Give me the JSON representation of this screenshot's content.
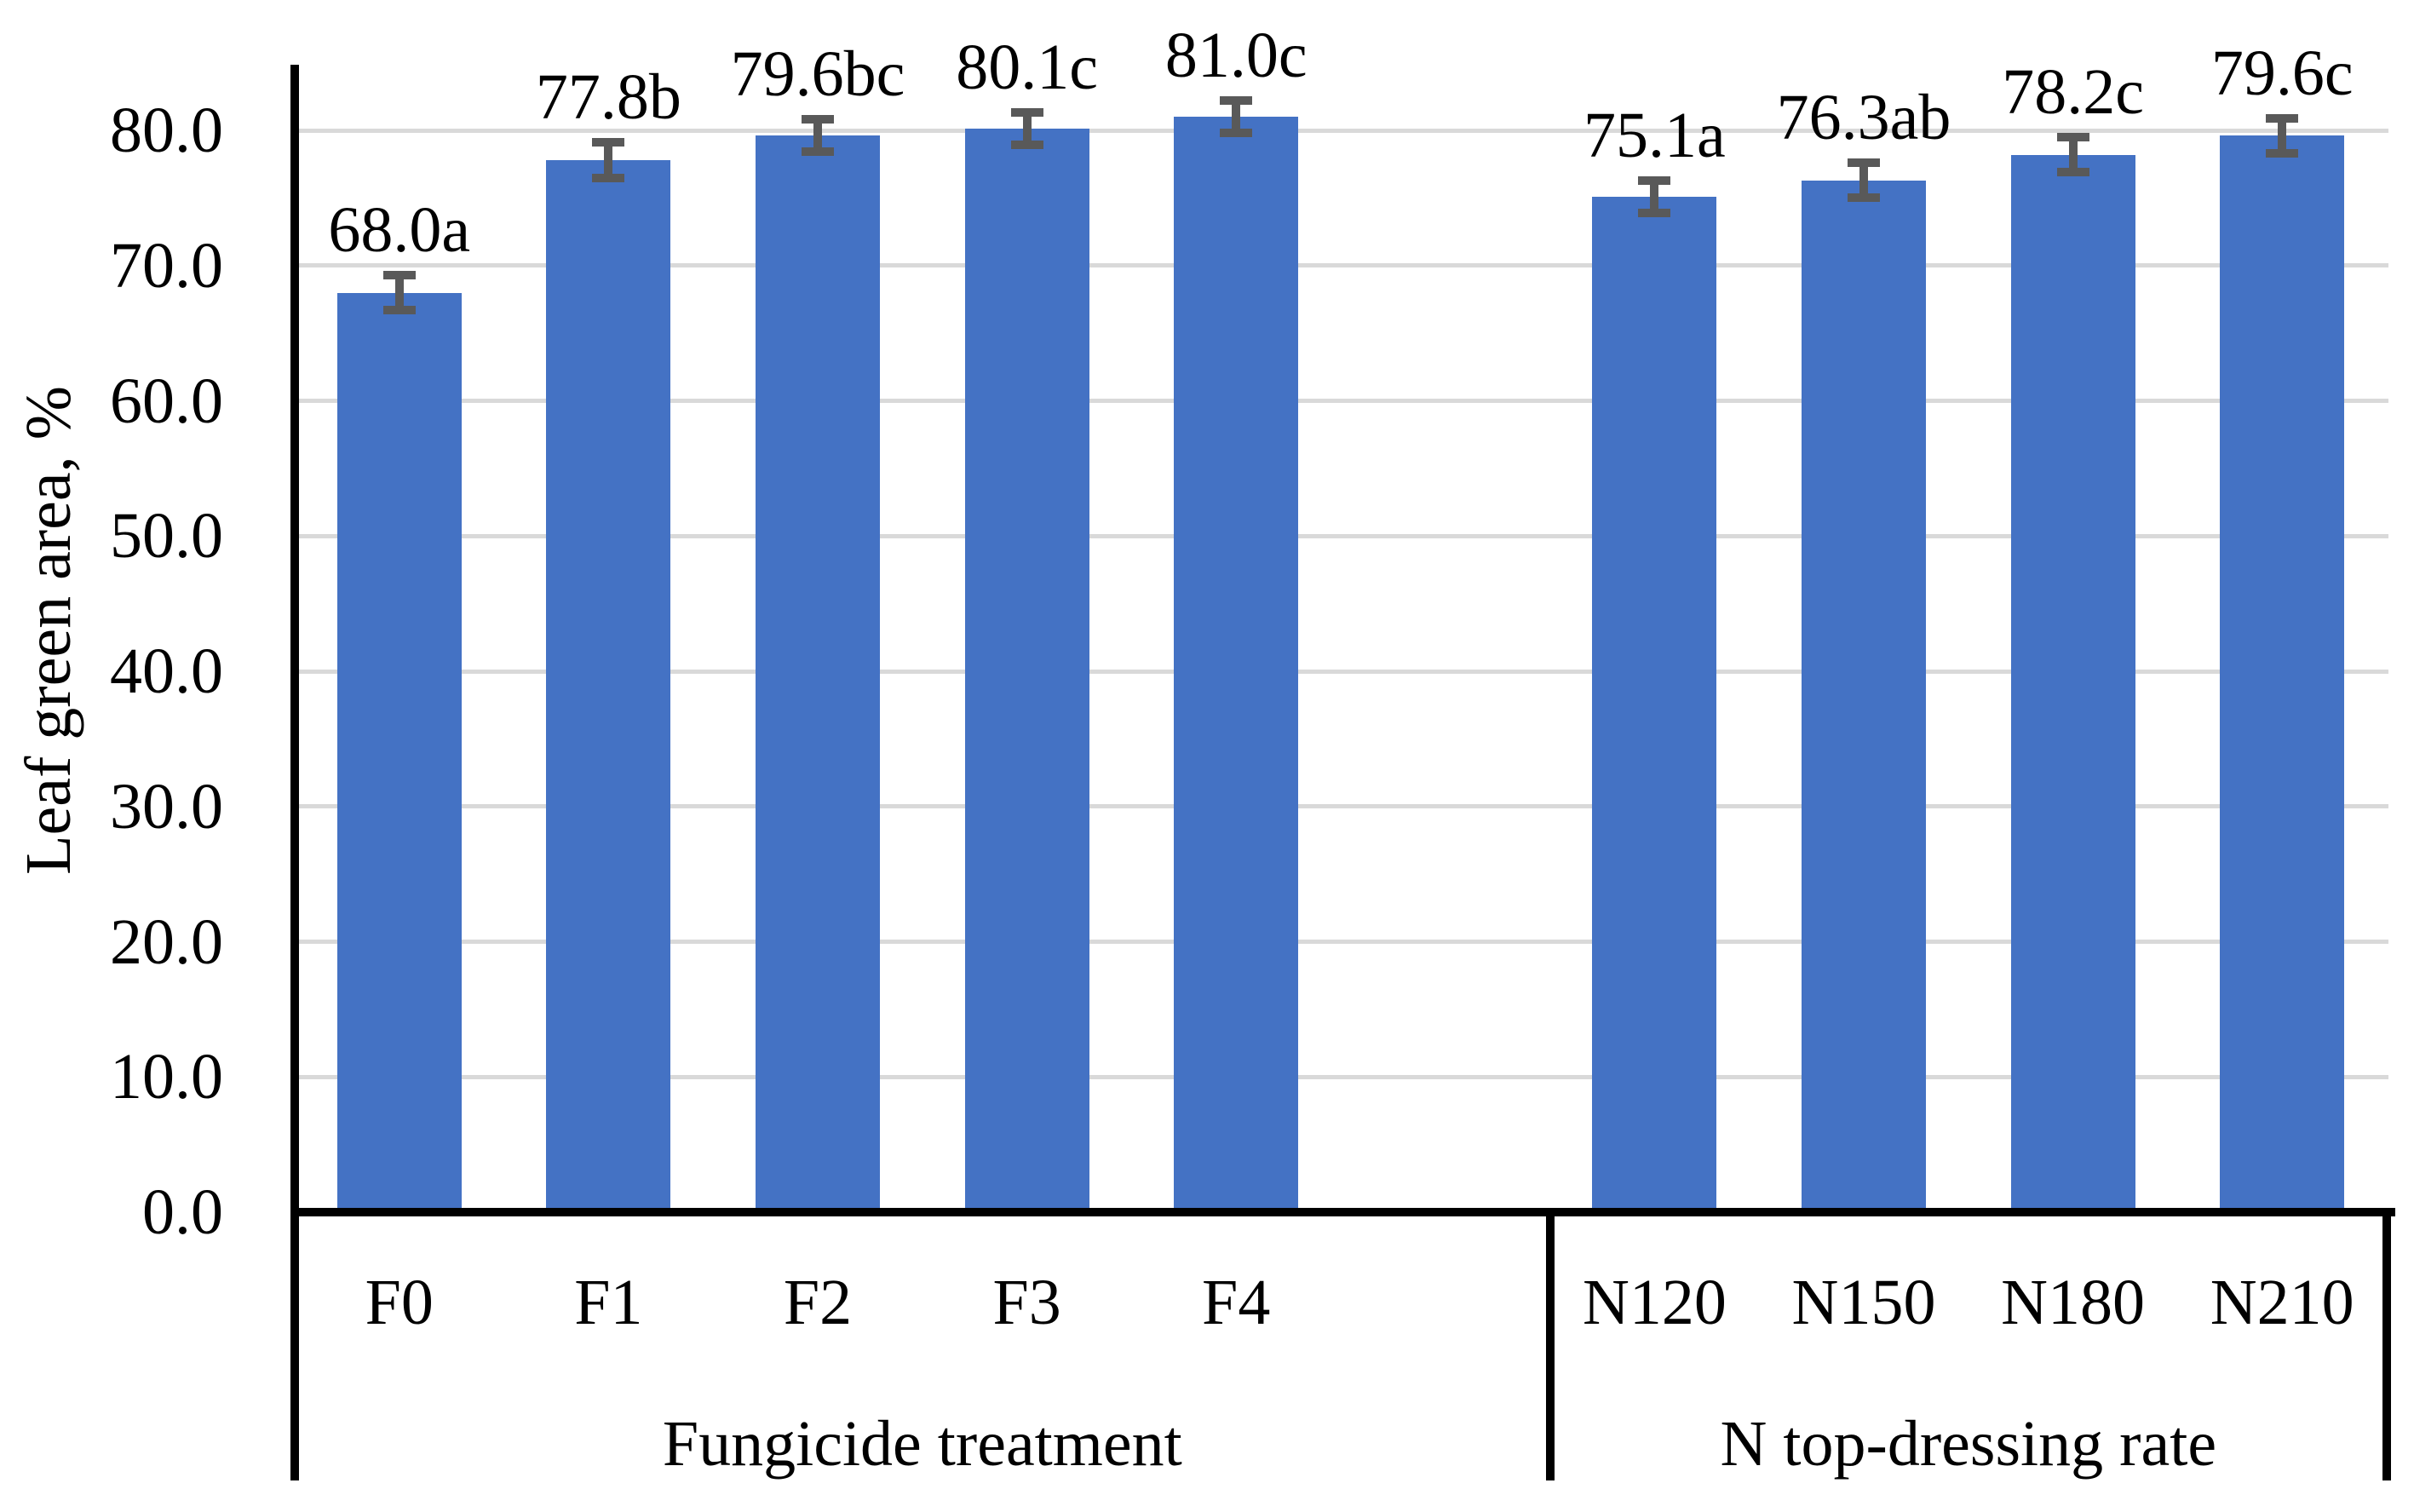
{
  "chart_data": {
    "type": "bar",
    "title": "",
    "ylabel": "Leaf green area, %",
    "xlabel": "",
    "ylim": [
      0,
      85
    ],
    "grid": true,
    "legend": false,
    "yticks": [
      0,
      10,
      20,
      30,
      40,
      50,
      60,
      70,
      80
    ],
    "ytick_labels": [
      "0.0",
      "10.0",
      "20.0",
      "30.0",
      "40.0",
      "50.0",
      "60.0",
      "70.0",
      "80.0"
    ],
    "colors": {
      "bar": "#4472C4",
      "error_bar": "#595959",
      "gridline": "#D9D9D9",
      "axis": "#000000",
      "text": "#000000",
      "background": "#FFFFFF"
    },
    "groups": [
      {
        "label": "Fungicide treatment",
        "categories": [
          "F0",
          "F1",
          "F2",
          "F3",
          "F4"
        ],
        "values": [
          68.0,
          77.8,
          79.6,
          80.1,
          81.0
        ],
        "errors": [
          1.3,
          1.3,
          1.2,
          1.2,
          1.2
        ],
        "data_labels": [
          "68.0a",
          "77.8b",
          "79.6bc",
          "80.1c",
          "81.0c"
        ]
      },
      {
        "label": "N top-dressing rate",
        "categories": [
          "N120",
          "N150",
          "N180",
          "N210"
        ],
        "values": [
          75.1,
          76.3,
          78.2,
          79.6
        ],
        "errors": [
          1.2,
          1.3,
          1.3,
          1.3
        ],
        "data_labels": [
          "75.1a",
          "76.3ab",
          "78.2c",
          "79.6c"
        ]
      }
    ]
  }
}
